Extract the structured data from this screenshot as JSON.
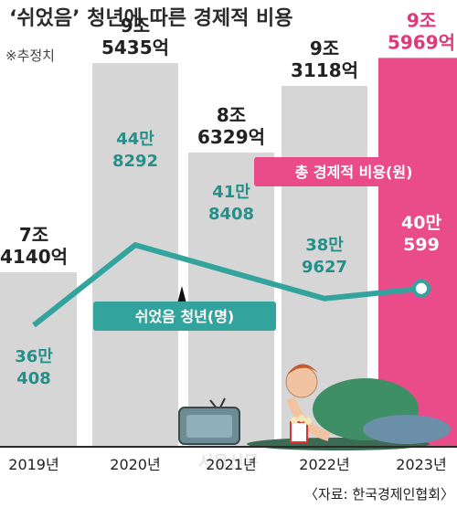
{
  "title": "‘쉬었음’ 청년에 따른 경제적 비용",
  "note": "※추정치",
  "source": "〈자료: 한국경제인협회〉",
  "watermark": "서울신문",
  "colors": {
    "bar": "#d6d6d6",
    "bar_highlight": "#ea4c89",
    "line": "#33a39d",
    "line_label": "#25908a",
    "highlight_text": "#e0387a",
    "ground": "#2a2a2a"
  },
  "chart_data": {
    "type": "bar",
    "categories": [
      "2019년",
      "2020년",
      "2021년",
      "2022년",
      "2023년"
    ],
    "series": [
      {
        "name": "총 경제적 비용(원)",
        "type": "bar",
        "values": [
          7.414,
          9.5435,
          8.6329,
          9.3118,
          9.5969
        ],
        "labels": [
          [
            "7조",
            "4140억"
          ],
          [
            "9조",
            "5435억"
          ],
          [
            "8조",
            "6329억"
          ],
          [
            "9조",
            "3118억"
          ],
          [
            "9조",
            "5969억"
          ]
        ]
      },
      {
        "name": "쉬었음 청년(명)",
        "type": "line",
        "values": [
          360408,
          448292,
          418408,
          389627,
          400599
        ],
        "labels": [
          [
            "36만",
            "408"
          ],
          [
            "44만",
            "8292"
          ],
          [
            "41만",
            "8408"
          ],
          [
            "38만",
            "9627"
          ],
          [
            "40만",
            "599"
          ]
        ]
      }
    ],
    "highlight_index": 4,
    "legend": [
      "총 경제적 비용(원)",
      "쉬었음 청년(명)"
    ],
    "note": "※추정치"
  }
}
